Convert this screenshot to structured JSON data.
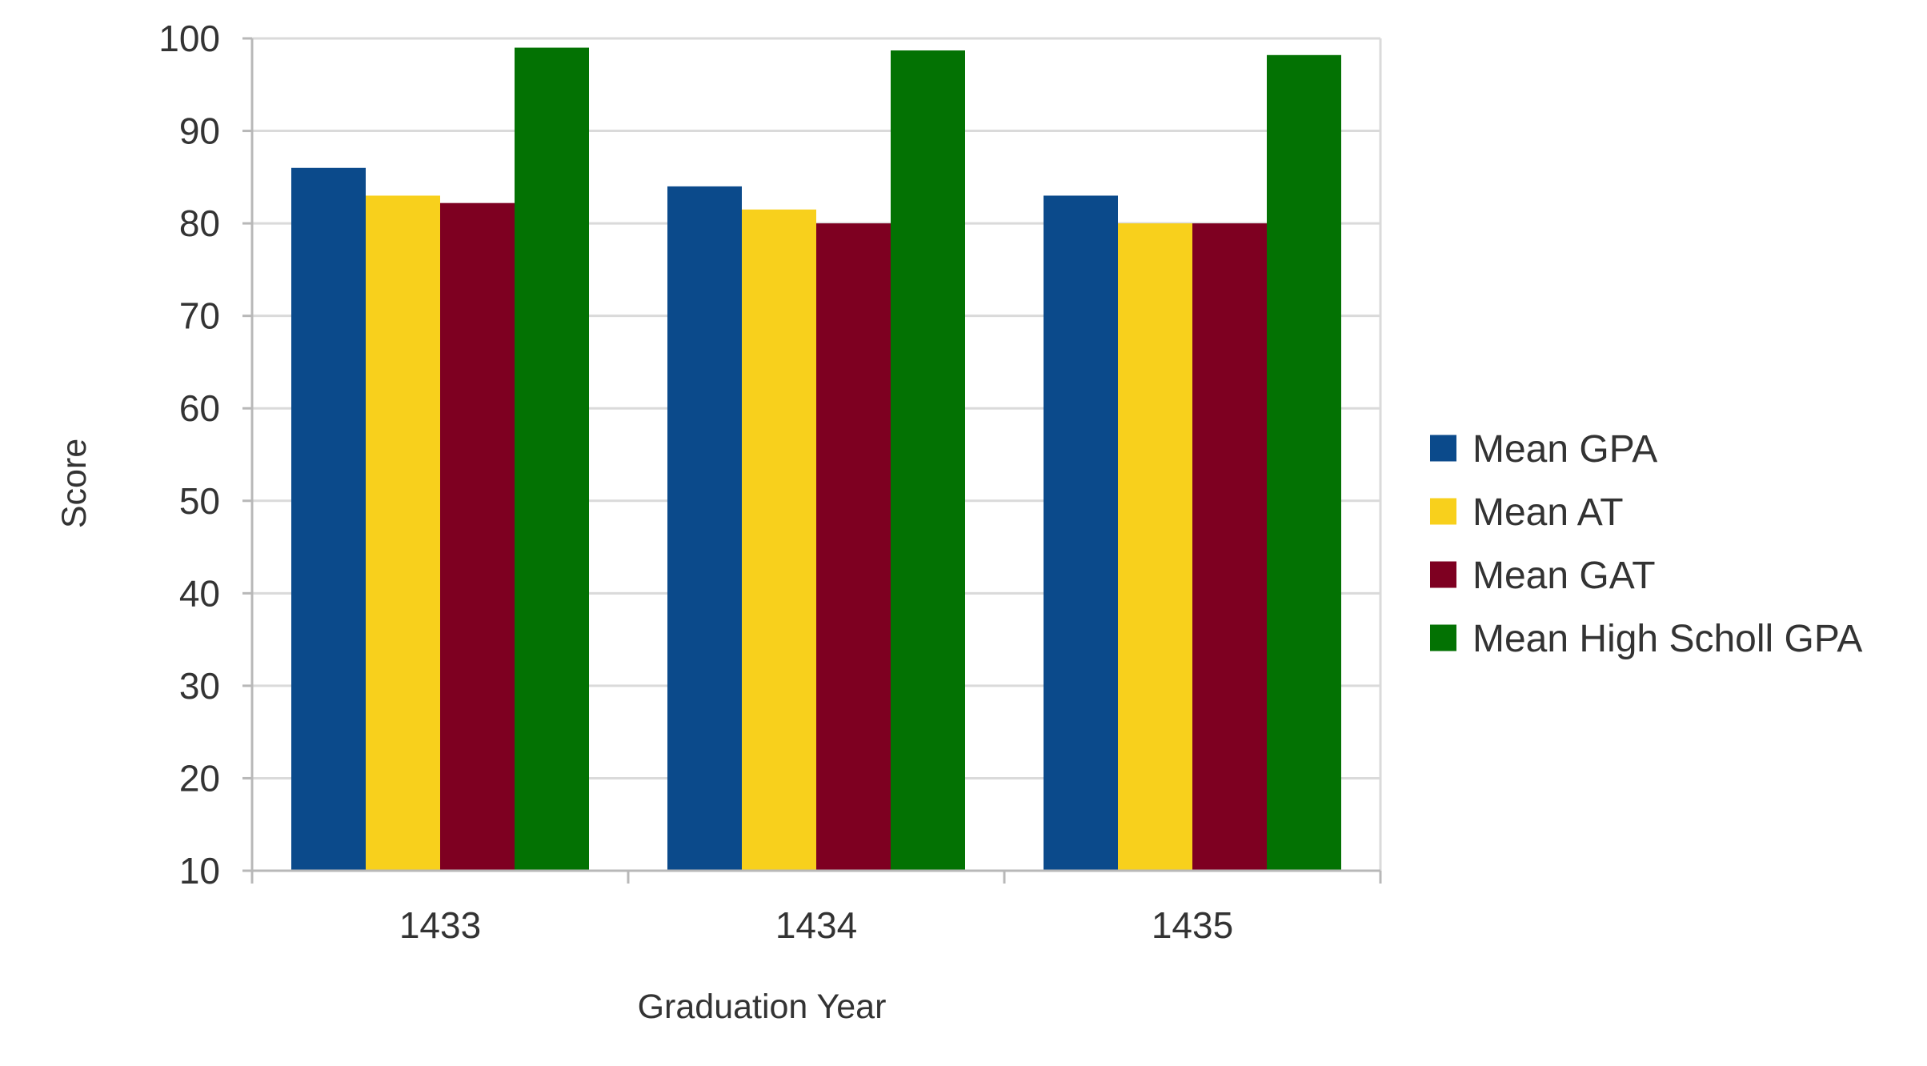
{
  "chart_data": {
    "type": "bar",
    "title": "",
    "xlabel": "Graduation Year",
    "ylabel": "Score",
    "categories": [
      "1433",
      "1434",
      "1435"
    ],
    "series": [
      {
        "name": "Mean GPA",
        "color": "#0b4a8b",
        "values": [
          86,
          84,
          83
        ]
      },
      {
        "name": "Mean AT",
        "color": "#f8d01c",
        "values": [
          83,
          81.5,
          80
        ]
      },
      {
        "name": "Mean GAT",
        "color": "#7e0021",
        "values": [
          82.2,
          80,
          80
        ]
      },
      {
        "name": "Mean High Scholl GPA",
        "color": "#037203",
        "values": [
          99,
          98.7,
          98.2
        ]
      }
    ],
    "ylim": [
      10,
      100
    ],
    "yticks": [
      10,
      20,
      30,
      40,
      50,
      60,
      70,
      80,
      90,
      100
    ],
    "grid": true,
    "legend_position": "right"
  }
}
